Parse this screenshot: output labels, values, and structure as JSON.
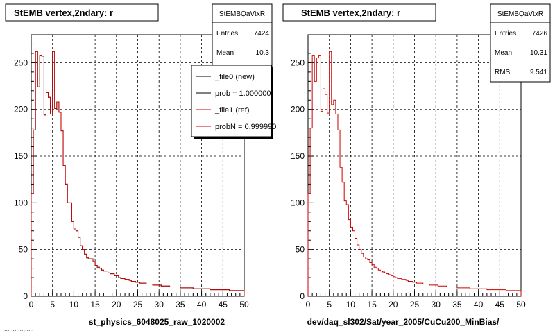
{
  "footer_text": "... ... ..., ....",
  "chart_data": [
    {
      "type": "histogram",
      "title": "StEMB  vertex,2ndary: r",
      "xlabel": "st_physics_6048025_raw_1020002",
      "ylabel": "",
      "xlim": [
        0,
        50
      ],
      "ylim": [
        0,
        280
      ],
      "xticks": [
        0,
        5,
        10,
        15,
        20,
        25,
        30,
        35,
        40,
        45,
        50
      ],
      "yticks": [
        0,
        50,
        100,
        150,
        200,
        250
      ],
      "grid": true,
      "stats": {
        "name": "StEMBQaVtxR",
        "rows": [
          {
            "label": "Entries",
            "value": "7424"
          },
          {
            "label": "Mean",
            "value": "10.3"
          }
        ]
      },
      "legend": {
        "placement": "top-right",
        "entries": [
          {
            "label": "_file0 (new)",
            "color": "#000000"
          },
          {
            "label": "prob = 1.000000",
            "color": "#000000"
          },
          {
            "label": "_file1 (ref)",
            "color": "#cc0000"
          },
          {
            "label": "probN = 0.999990",
            "color": "#cc0000"
          }
        ]
      },
      "series": [
        {
          "name": "_file0 (new)",
          "color": "#000000",
          "values": [
            110,
            178,
            262,
            224,
            258,
            257,
            194,
            218,
            213,
            195,
            262,
            201,
            208,
            197,
            177,
            140,
            120,
            100,
            100,
            80,
            72,
            70,
            63,
            54,
            50,
            45,
            41,
            40,
            40,
            37,
            33,
            31,
            30,
            28,
            27,
            27,
            25,
            24,
            24,
            22,
            22,
            20,
            19,
            19,
            18,
            18,
            17,
            16,
            16,
            15,
            15,
            14,
            14,
            14,
            13,
            13,
            13,
            12,
            12,
            12,
            12,
            11,
            11,
            11,
            11,
            10,
            10,
            10,
            10,
            10,
            9,
            9,
            9,
            9,
            9,
            9,
            8,
            8,
            8,
            8,
            8,
            8,
            8,
            8,
            7,
            7,
            7,
            7,
            7,
            7,
            7,
            7,
            7,
            6,
            6,
            6,
            6,
            6,
            6,
            6
          ]
        },
        {
          "name": "_file1 (ref)",
          "color": "#cc0000",
          "values": [
            110,
            178,
            262,
            224,
            258,
            257,
            194,
            218,
            213,
            195,
            262,
            201,
            208,
            197,
            177,
            140,
            120,
            100,
            100,
            80,
            72,
            70,
            63,
            54,
            50,
            45,
            41,
            40,
            40,
            37,
            33,
            31,
            30,
            28,
            27,
            27,
            25,
            24,
            24,
            22,
            22,
            20,
            19,
            19,
            18,
            18,
            17,
            16,
            16,
            15,
            15,
            14,
            14,
            14,
            13,
            13,
            13,
            12,
            12,
            12,
            12,
            11,
            11,
            11,
            11,
            10,
            10,
            10,
            10,
            10,
            9,
            9,
            9,
            9,
            9,
            9,
            8,
            8,
            8,
            8,
            8,
            8,
            8,
            8,
            7,
            7,
            7,
            7,
            7,
            7,
            7,
            7,
            7,
            6,
            6,
            6,
            6,
            6,
            6,
            6
          ]
        }
      ]
    },
    {
      "type": "histogram",
      "title": "StEMB  vertex,2ndary: r",
      "xlabel": "dev/daq_sl302/Sat/year_2005/CuCu200_MinBias/",
      "ylabel": "",
      "xlim": [
        0,
        50
      ],
      "ylim": [
        0,
        280
      ],
      "xticks": [
        0,
        5,
        10,
        15,
        20,
        25,
        30,
        35,
        40,
        45,
        50
      ],
      "yticks": [
        0,
        50,
        100,
        150,
        200,
        250
      ],
      "grid": true,
      "stats": {
        "name": "StEMBQaVtxR",
        "rows": [
          {
            "label": "Entries",
            "value": "7426"
          },
          {
            "label": "Mean",
            "value": "10.31"
          },
          {
            "label": "RMS",
            "value": "9.541"
          }
        ]
      },
      "series": [
        {
          "name": "",
          "color": "#cc0000",
          "values": [
            110,
            180,
            258,
            230,
            255,
            258,
            198,
            222,
            216,
            196,
            262,
            205,
            210,
            195,
            178,
            138,
            122,
            102,
            98,
            82,
            74,
            70,
            62,
            55,
            50,
            46,
            42,
            40,
            39,
            36,
            34,
            31,
            30,
            28,
            27,
            26,
            25,
            24,
            23,
            22,
            21,
            20,
            19,
            19,
            18,
            18,
            17,
            16,
            16,
            15,
            15,
            14,
            14,
            14,
            13,
            13,
            13,
            12,
            12,
            12,
            12,
            11,
            11,
            11,
            11,
            10,
            10,
            10,
            10,
            10,
            9,
            9,
            9,
            9,
            9,
            9,
            8,
            8,
            8,
            8,
            8,
            8,
            8,
            8,
            7,
            7,
            7,
            7,
            7,
            7,
            7,
            7,
            7,
            6,
            6,
            6,
            6,
            6,
            6,
            6
          ]
        }
      ]
    }
  ]
}
